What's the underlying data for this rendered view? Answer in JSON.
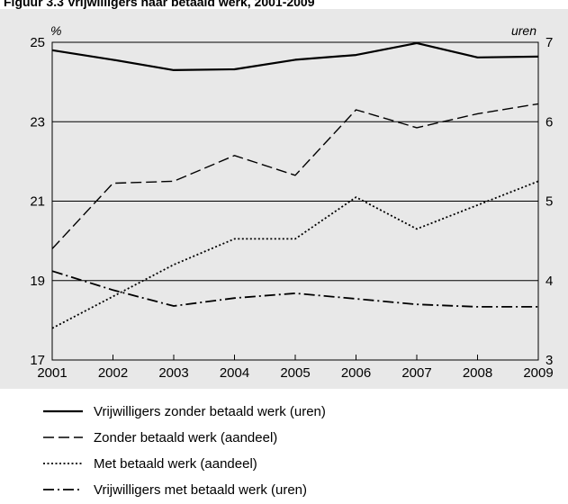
{
  "header": {
    "title": "Figuur 3.3 Vrijwilligers naar betaald werk, 2001-2009"
  },
  "chart_data": {
    "type": "line",
    "title": "Figuur 3.3 Vrijwilligers naar betaald werk, 2001-2009",
    "x": [
      2001,
      2002,
      2003,
      2004,
      2005,
      2006,
      2007,
      2008,
      2009
    ],
    "x_tick_labels": [
      "2001",
      "2002",
      "2003",
      "2004",
      "2005",
      "2006",
      "2007",
      "2008",
      "2009"
    ],
    "y_left": {
      "label": "%",
      "ylim": [
        17,
        25
      ],
      "ticks": [
        17,
        19,
        21,
        23,
        25
      ],
      "tick_labels": [
        "17",
        "19",
        "21",
        "23",
        "25"
      ]
    },
    "y_right": {
      "label": "uren",
      "ylim": [
        3,
        7
      ],
      "ticks": [
        3,
        4,
        5,
        6,
        7
      ],
      "tick_labels": [
        "3",
        "4",
        "5",
        "6",
        "7"
      ]
    },
    "grid": "horizontal",
    "background_color": "#e8e8e8",
    "legend_position": "bottom",
    "series": [
      {
        "name": "Vrijwilligers zonder betaald werk (uren)",
        "axis": "right",
        "style": "solid",
        "color": "#000000",
        "values": [
          6.9,
          6.78,
          6.65,
          6.66,
          6.78,
          6.84,
          6.99,
          6.81,
          6.82
        ]
      },
      {
        "name": "Zonder betaald werk (aandeel)",
        "axis": "left",
        "style": "dashed",
        "color": "#000000",
        "values": [
          19.8,
          21.45,
          21.5,
          22.15,
          21.65,
          23.3,
          22.85,
          23.2,
          23.45
        ]
      },
      {
        "name": "Met betaald werk (aandeel)",
        "axis": "left",
        "style": "dotted",
        "color": "#000000",
        "values": [
          17.8,
          18.6,
          19.4,
          20.05,
          20.05,
          21.1,
          20.3,
          20.9,
          21.5
        ]
      },
      {
        "name": "Vrijwilligers met betaald werk (uren)",
        "axis": "right",
        "style": "dashdot",
        "color": "#000000",
        "values": [
          4.12,
          3.88,
          3.68,
          3.78,
          3.84,
          3.77,
          3.7,
          3.67,
          3.67
        ]
      }
    ]
  }
}
